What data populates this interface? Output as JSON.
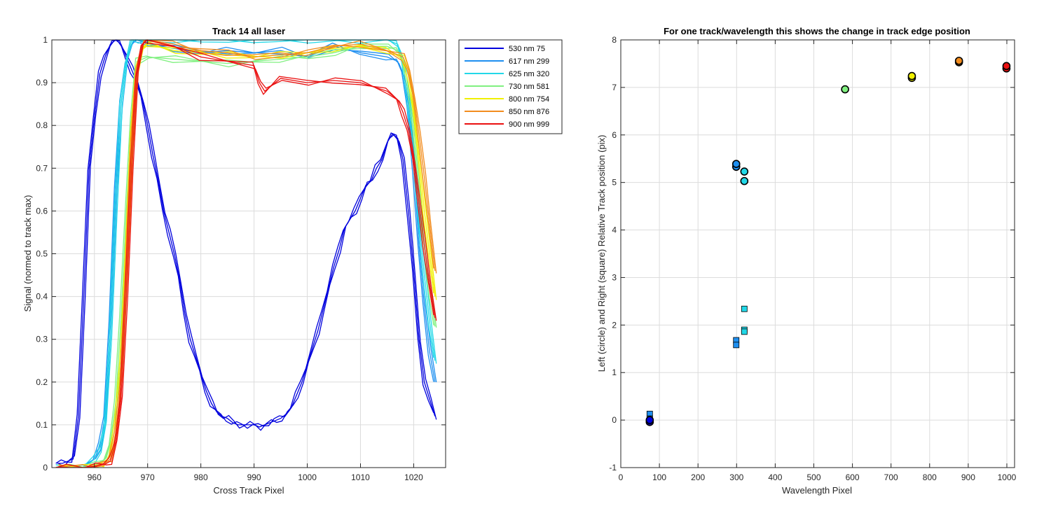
{
  "chart_data": [
    {
      "type": "line",
      "title": "Track 14  all laser",
      "xlabel": "Cross Track Pixel",
      "ylabel": "Signal (normed to track max)",
      "xlim": [
        952,
        1026
      ],
      "ylim": [
        0,
        1
      ],
      "xticks": [
        960,
        970,
        980,
        990,
        1000,
        1010,
        1020
      ],
      "yticks": [
        0,
        0.1,
        0.2,
        0.3,
        0.4,
        0.5,
        0.6,
        0.7,
        0.8,
        0.9,
        1
      ],
      "ytick_labels": [
        "0",
        "0.1",
        "0.2",
        "0.3",
        "0.4",
        "0.5",
        "0.6",
        "0.7",
        "0.8",
        "0.9",
        "1"
      ],
      "grid": true,
      "legend_position": "outside-top-right",
      "series": [
        {
          "name": "530 nm 75",
          "color": "#0000dd",
          "x": [
            953,
            954,
            955,
            956,
            957,
            958,
            959,
            960,
            961,
            962,
            963,
            964,
            965,
            966,
            967,
            968,
            969,
            970,
            971,
            972,
            973,
            974,
            975,
            976,
            977,
            978,
            979,
            980,
            981,
            982,
            983,
            984,
            985,
            986,
            987,
            988,
            989,
            990,
            991,
            992,
            993,
            994,
            995,
            996,
            997,
            998,
            999,
            1000,
            1001,
            1002,
            1003,
            1004,
            1005,
            1006,
            1007,
            1008,
            1009,
            1010,
            1011,
            1012,
            1013,
            1014,
            1015,
            1016,
            1017,
            1018,
            1019,
            1020,
            1021,
            1022,
            1023,
            1024
          ],
          "y": [
            0.01,
            0.01,
            0.015,
            0.02,
            0.12,
            0.4,
            0.7,
            0.82,
            0.92,
            0.96,
            0.99,
            1.0,
            0.99,
            0.96,
            0.93,
            0.9,
            0.86,
            0.8,
            0.73,
            0.67,
            0.6,
            0.55,
            0.5,
            0.44,
            0.36,
            0.3,
            0.26,
            0.22,
            0.18,
            0.15,
            0.13,
            0.12,
            0.115,
            0.105,
            0.1,
            0.1,
            0.1,
            0.1,
            0.095,
            0.1,
            0.105,
            0.11,
            0.115,
            0.125,
            0.14,
            0.17,
            0.2,
            0.24,
            0.28,
            0.32,
            0.37,
            0.42,
            0.47,
            0.51,
            0.56,
            0.58,
            0.6,
            0.63,
            0.66,
            0.67,
            0.7,
            0.72,
            0.76,
            0.78,
            0.77,
            0.72,
            0.6,
            0.46,
            0.3,
            0.2,
            0.16,
            0.12
          ]
        },
        {
          "name": "617 nm 299",
          "color": "#1e8ff0",
          "x": [
            953,
            955,
            958,
            960,
            961,
            962,
            963,
            964,
            965,
            966,
            967,
            968,
            970,
            975,
            980,
            985,
            990,
            995,
            1000,
            1005,
            1010,
            1015,
            1017,
            1018,
            1019,
            1020,
            1021,
            1022,
            1023,
            1024
          ],
          "y": [
            0,
            0,
            0,
            0.02,
            0.05,
            0.12,
            0.35,
            0.65,
            0.85,
            0.95,
            0.99,
            1.0,
            0.99,
            0.98,
            0.97,
            0.975,
            0.97,
            0.975,
            0.96,
            0.985,
            0.97,
            0.96,
            0.95,
            0.92,
            0.85,
            0.7,
            0.52,
            0.38,
            0.27,
            0.2
          ]
        },
        {
          "name": "625 nm 320",
          "color": "#22d8e8",
          "x": [
            953,
            955,
            958,
            960,
            961,
            962,
            963,
            964,
            965,
            966,
            967,
            968,
            970,
            975,
            980,
            985,
            990,
            995,
            1000,
            1005,
            1010,
            1015,
            1017,
            1018,
            1019,
            1020,
            1021,
            1022,
            1023,
            1024
          ],
          "y": [
            0,
            0,
            0,
            0.02,
            0.04,
            0.1,
            0.3,
            0.6,
            0.85,
            0.95,
            1.0,
            1.0,
            1.0,
            1.0,
            1.0,
            1.0,
            1.0,
            1.0,
            1.0,
            1.0,
            1.0,
            1.0,
            0.99,
            0.95,
            0.86,
            0.73,
            0.58,
            0.45,
            0.34,
            0.25
          ]
        },
        {
          "name": "730 nm 581",
          "color": "#80f080",
          "x": [
            953,
            955,
            958,
            960,
            962,
            963,
            964,
            965,
            966,
            967,
            968,
            970,
            975,
            980,
            985,
            990,
            995,
            1000,
            1005,
            1010,
            1015,
            1017,
            1018,
            1019,
            1020,
            1021,
            1022,
            1023,
            1024
          ],
          "y": [
            0,
            0,
            0,
            0.005,
            0.02,
            0.06,
            0.15,
            0.35,
            0.6,
            0.82,
            0.95,
            0.96,
            0.955,
            0.95,
            0.945,
            0.95,
            0.955,
            0.96,
            0.97,
            0.985,
            0.985,
            0.975,
            0.95,
            0.9,
            0.8,
            0.66,
            0.52,
            0.42,
            0.33
          ]
        },
        {
          "name": "800 nm 754",
          "color": "#f0f000",
          "x": [
            953,
            955,
            958,
            960,
            962,
            963,
            964,
            965,
            966,
            967,
            968,
            969,
            970,
            975,
            980,
            985,
            990,
            995,
            1000,
            1005,
            1010,
            1015,
            1018,
            1019,
            1020,
            1021,
            1022,
            1023,
            1024
          ],
          "y": [
            0,
            0,
            0,
            0.005,
            0.01,
            0.03,
            0.1,
            0.25,
            0.5,
            0.78,
            0.93,
            0.98,
            0.99,
            0.975,
            0.97,
            0.965,
            0.96,
            0.965,
            0.97,
            0.98,
            0.985,
            0.975,
            0.96,
            0.92,
            0.84,
            0.73,
            0.6,
            0.5,
            0.4
          ]
        },
        {
          "name": "850 nm 876",
          "color": "#f28c1e",
          "x": [
            953,
            955,
            958,
            960,
            962,
            963,
            964,
            965,
            966,
            967,
            968,
            969,
            970,
            975,
            980,
            985,
            990,
            995,
            1000,
            1005,
            1010,
            1015,
            1018,
            1019,
            1020,
            1021,
            1022,
            1023,
            1024
          ],
          "y": [
            0,
            0,
            0,
            0.005,
            0.01,
            0.02,
            0.08,
            0.2,
            0.45,
            0.75,
            0.93,
            0.99,
            1.0,
            0.99,
            0.975,
            0.97,
            0.96,
            0.965,
            0.97,
            0.985,
            0.99,
            0.975,
            0.96,
            0.93,
            0.87,
            0.78,
            0.68,
            0.57,
            0.46
          ]
        },
        {
          "name": "900 nm 999",
          "color": "#ea1010",
          "x": [
            953,
            955,
            958,
            960,
            962,
            963,
            964,
            965,
            966,
            967,
            968,
            969,
            970,
            975,
            980,
            985,
            990,
            991,
            992,
            995,
            1000,
            1005,
            1010,
            1015,
            1017,
            1018,
            1019,
            1020,
            1021,
            1022,
            1023,
            1024
          ],
          "y": [
            0,
            0,
            0,
            0.003,
            0.008,
            0.015,
            0.06,
            0.16,
            0.4,
            0.7,
            0.92,
            0.99,
            1.0,
            0.985,
            0.96,
            0.95,
            0.94,
            0.9,
            0.88,
            0.91,
            0.9,
            0.905,
            0.9,
            0.88,
            0.86,
            0.83,
            0.79,
            0.72,
            0.62,
            0.52,
            0.43,
            0.35
          ]
        }
      ]
    },
    {
      "type": "scatter",
      "title": "For one track/wavelength this shows the change in track edge position",
      "xlabel": "Wavelength Pixel",
      "ylabel": "Left (circle) and Right (square) Relative Track position (pix)",
      "xlim": [
        0,
        1020
      ],
      "ylim": [
        -1,
        8
      ],
      "xticks": [
        0,
        100,
        200,
        300,
        400,
        500,
        600,
        700,
        800,
        900,
        1000
      ],
      "yticks": [
        -1,
        0,
        1,
        2,
        3,
        4,
        5,
        6,
        7,
        8
      ],
      "grid": true,
      "series": [
        {
          "name": "Left (circle)",
          "marker": "circle",
          "points": [
            {
              "x": 75,
              "y": -0.04,
              "color": "#0000dd"
            },
            {
              "x": 75,
              "y": 0.0,
              "color": "#0000dd"
            },
            {
              "x": 299,
              "y": 5.33,
              "color": "#1e8ff0"
            },
            {
              "x": 299,
              "y": 5.39,
              "color": "#1e8ff0"
            },
            {
              "x": 320,
              "y": 5.23,
              "color": "#22d8e8"
            },
            {
              "x": 320,
              "y": 5.03,
              "color": "#22d8e8"
            },
            {
              "x": 581,
              "y": 6.96,
              "color": "#80f080"
            },
            {
              "x": 754,
              "y": 7.2,
              "color": "#f0f000"
            },
            {
              "x": 754,
              "y": 7.24,
              "color": "#f0f000"
            },
            {
              "x": 876,
              "y": 7.53,
              "color": "#f28c1e"
            },
            {
              "x": 876,
              "y": 7.56,
              "color": "#f28c1e"
            },
            {
              "x": 999,
              "y": 7.4,
              "color": "#ea1010"
            },
            {
              "x": 999,
              "y": 7.45,
              "color": "#ea1010"
            }
          ]
        },
        {
          "name": "Right (square)",
          "marker": "square",
          "points": [
            {
              "x": 75,
              "y": 0.13,
              "color": "#1e8ff0"
            },
            {
              "x": 75,
              "y": 0.03,
              "color": "#1e8ff0"
            },
            {
              "x": 75,
              "y": -0.03,
              "color": "#1e8ff0"
            },
            {
              "x": 299,
              "y": 1.68,
              "color": "#1e8ff0"
            },
            {
              "x": 299,
              "y": 1.58,
              "color": "#1e8ff0"
            },
            {
              "x": 320,
              "y": 2.34,
              "color": "#22d8e8"
            },
            {
              "x": 320,
              "y": 1.9,
              "color": "#22d8e8"
            },
            {
              "x": 320,
              "y": 1.86,
              "color": "#22d8e8"
            }
          ]
        }
      ]
    }
  ]
}
